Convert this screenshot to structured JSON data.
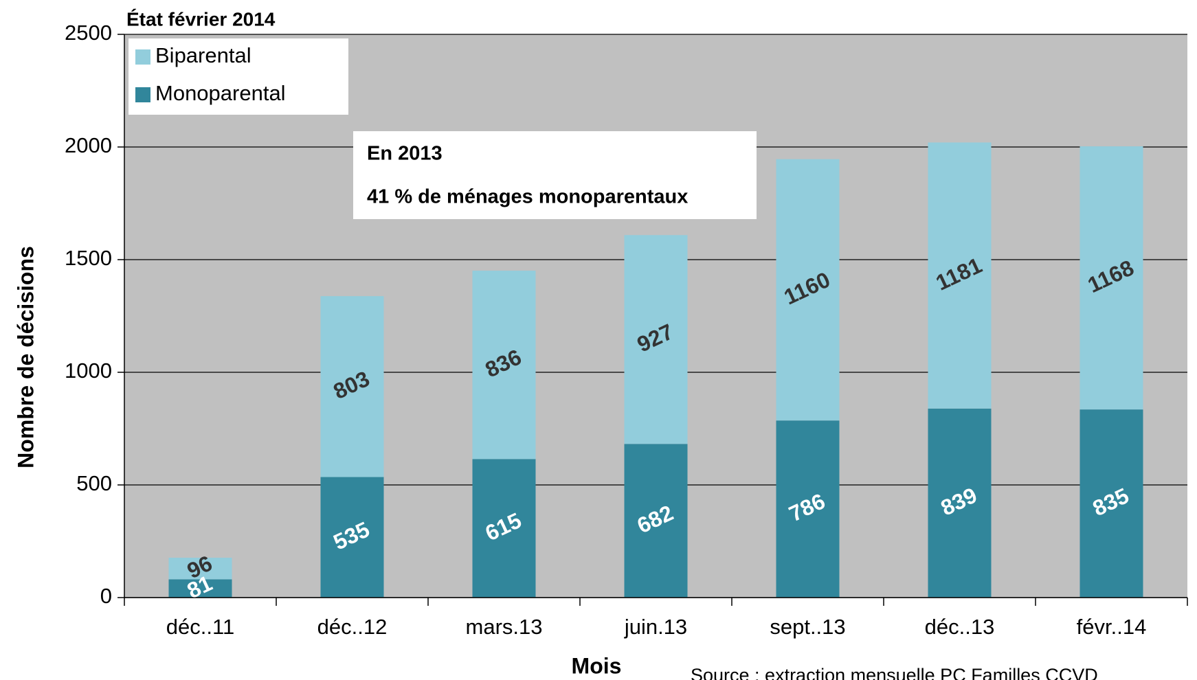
{
  "chart_data": {
    "type": "stacked_bar",
    "title": "État février 2014",
    "x_label": "Mois",
    "y_label": "Nombre de décisions",
    "annotation": [
      "En 2013",
      "41 % de ménages monoparentaux"
    ],
    "source": "Source : extraction mensuelle PC Familles CCVD",
    "categories": [
      "déc..11",
      "déc..12",
      "mars.13",
      "juin.13",
      "sept..13",
      "déc..13",
      "févr..14"
    ],
    "series": [
      {
        "name": "Monoparental",
        "color": "#31869b",
        "values": [
          81,
          535,
          615,
          682,
          786,
          839,
          835
        ]
      },
      {
        "name": "Biparental",
        "color": "#92cddc",
        "values": [
          96,
          803,
          836,
          927,
          1160,
          1181,
          1168
        ]
      }
    ],
    "ylim": [
      0,
      2500
    ],
    "yticks": [
      0,
      500,
      1000,
      1500,
      2000,
      2500
    ],
    "grid": true,
    "legend": "top-left"
  }
}
